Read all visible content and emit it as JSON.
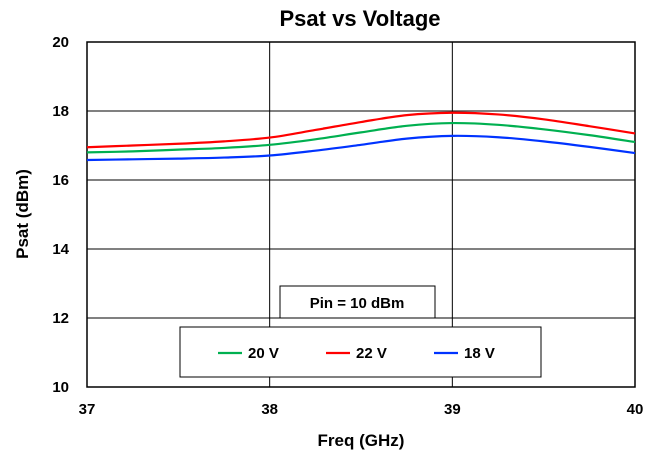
{
  "chart_data": {
    "type": "line",
    "title": "Psat vs Voltage",
    "xlabel": "Freq (GHz)",
    "ylabel": "Psat (dBm)",
    "xlim": [
      37,
      40
    ],
    "ylim": [
      10,
      20
    ],
    "xticks": [
      "37",
      "38",
      "39",
      "40"
    ],
    "yticks": [
      "10",
      "12",
      "14",
      "16",
      "18",
      "20"
    ],
    "grid": true,
    "annotation": "Pin = 10 dBm",
    "legend_position": "bottom-center",
    "series": [
      {
        "name": "20 V",
        "color": "#00b050",
        "x": [
          37,
          37.25,
          37.5,
          37.75,
          38,
          38.25,
          38.5,
          38.75,
          39,
          39.25,
          39.5,
          39.75,
          40
        ],
        "values": [
          16.8,
          16.83,
          16.88,
          16.93,
          17.02,
          17.18,
          17.38,
          17.57,
          17.65,
          17.6,
          17.47,
          17.3,
          17.1
        ]
      },
      {
        "name": "22 V",
        "color": "#ff0000",
        "x": [
          37,
          37.25,
          37.5,
          37.75,
          38,
          38.25,
          38.5,
          38.75,
          39,
          39.25,
          39.5,
          39.75,
          40
        ],
        "values": [
          16.95,
          17.0,
          17.05,
          17.12,
          17.23,
          17.45,
          17.68,
          17.88,
          17.95,
          17.9,
          17.76,
          17.56,
          17.35
        ]
      },
      {
        "name": "18 V",
        "color": "#0033ff",
        "x": [
          37,
          37.25,
          37.5,
          37.75,
          38,
          38.25,
          38.5,
          38.75,
          39,
          39.25,
          39.5,
          39.75,
          40
        ],
        "values": [
          16.58,
          16.6,
          16.62,
          16.65,
          16.71,
          16.85,
          17.02,
          17.2,
          17.28,
          17.24,
          17.12,
          16.96,
          16.78
        ]
      }
    ]
  }
}
